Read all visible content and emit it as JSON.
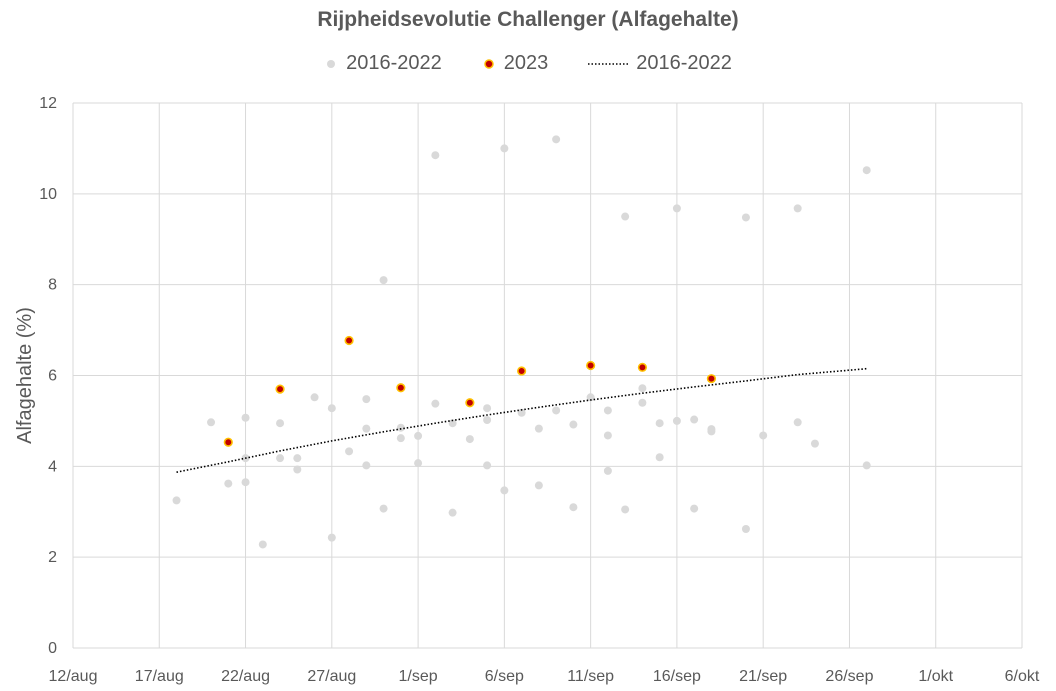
{
  "chart_data": {
    "type": "scatter",
    "title": "Rijpheidsevolutie Challenger (Alfagehalte)",
    "xlabel": "",
    "ylabel": "Alfagehalte (%)",
    "x_unit": "date",
    "xlim": [
      "2023-08-12",
      "2023-10-06"
    ],
    "ylim": [
      0,
      12
    ],
    "x_ticks": [
      "12/aug",
      "17/aug",
      "22/aug",
      "27/aug",
      "1/sep",
      "6/sep",
      "11/sep",
      "16/sep",
      "21/sep",
      "26/sep",
      "1/okt",
      "6/okt"
    ],
    "x_tick_dates": [
      "2023-08-12",
      "2023-08-17",
      "2023-08-22",
      "2023-08-27",
      "2023-09-01",
      "2023-09-06",
      "2023-09-11",
      "2023-09-16",
      "2023-09-21",
      "2023-09-26",
      "2023-10-01",
      "2023-10-06"
    ],
    "y_ticks": [
      0,
      2,
      4,
      6,
      8,
      10,
      12
    ],
    "grid": true,
    "legend_position": "top",
    "series": [
      {
        "name": "2016-2022",
        "kind": "scatter",
        "color": "#d9d9d9",
        "points": [
          [
            "2023-08-18",
            3.25
          ],
          [
            "2023-08-20",
            4.97
          ],
          [
            "2023-08-21",
            3.62
          ],
          [
            "2023-08-22",
            5.07
          ],
          [
            "2023-08-22",
            4.18
          ],
          [
            "2023-08-22",
            3.65
          ],
          [
            "2023-08-23",
            2.28
          ],
          [
            "2023-08-24",
            4.95
          ],
          [
            "2023-08-24",
            4.18
          ],
          [
            "2023-08-25",
            4.18
          ],
          [
            "2023-08-25",
            3.93
          ],
          [
            "2023-08-26",
            5.52
          ],
          [
            "2023-08-27",
            5.28
          ],
          [
            "2023-08-27",
            2.43
          ],
          [
            "2023-08-28",
            4.33
          ],
          [
            "2023-08-29",
            5.48
          ],
          [
            "2023-08-29",
            4.83
          ],
          [
            "2023-08-29",
            4.02
          ],
          [
            "2023-08-30",
            8.1
          ],
          [
            "2023-08-30",
            3.07
          ],
          [
            "2023-08-31",
            4.85
          ],
          [
            "2023-08-31",
            4.62
          ],
          [
            "2023-09-01",
            4.67
          ],
          [
            "2023-09-01",
            4.07
          ],
          [
            "2023-09-02",
            10.85
          ],
          [
            "2023-09-02",
            5.38
          ],
          [
            "2023-09-03",
            4.95
          ],
          [
            "2023-09-03",
            2.98
          ],
          [
            "2023-09-04",
            4.6
          ],
          [
            "2023-09-05",
            5.28
          ],
          [
            "2023-09-05",
            5.02
          ],
          [
            "2023-09-05",
            4.02
          ],
          [
            "2023-09-06",
            11.0
          ],
          [
            "2023-09-06",
            3.47
          ],
          [
            "2023-09-07",
            5.18
          ],
          [
            "2023-09-08",
            4.83
          ],
          [
            "2023-09-08",
            3.58
          ],
          [
            "2023-09-09",
            11.2
          ],
          [
            "2023-09-09",
            5.23
          ],
          [
            "2023-09-10",
            4.92
          ],
          [
            "2023-09-10",
            3.1
          ],
          [
            "2023-09-11",
            5.52
          ],
          [
            "2023-09-12",
            5.23
          ],
          [
            "2023-09-12",
            4.68
          ],
          [
            "2023-09-12",
            3.9
          ],
          [
            "2023-09-13",
            9.5
          ],
          [
            "2023-09-13",
            3.05
          ],
          [
            "2023-09-14",
            5.72
          ],
          [
            "2023-09-14",
            5.4
          ],
          [
            "2023-09-15",
            4.95
          ],
          [
            "2023-09-15",
            4.2
          ],
          [
            "2023-09-16",
            9.68
          ],
          [
            "2023-09-16",
            5.0
          ],
          [
            "2023-09-17",
            5.03
          ],
          [
            "2023-09-17",
            3.07
          ],
          [
            "2023-09-18",
            4.82
          ],
          [
            "2023-09-18",
            4.77
          ],
          [
            "2023-09-20",
            9.48
          ],
          [
            "2023-09-20",
            2.62
          ],
          [
            "2023-09-21",
            4.68
          ],
          [
            "2023-09-23",
            9.68
          ],
          [
            "2023-09-23",
            4.97
          ],
          [
            "2023-09-24",
            4.5
          ],
          [
            "2023-09-27",
            10.52
          ],
          [
            "2023-09-27",
            4.02
          ]
        ]
      },
      {
        "name": "2023",
        "kind": "scatter",
        "color": "#c00000",
        "edge_color": "#ffc000",
        "points": [
          [
            "2023-08-21",
            4.53
          ],
          [
            "2023-08-24",
            5.7
          ],
          [
            "2023-08-28",
            6.77
          ],
          [
            "2023-08-31",
            5.73
          ],
          [
            "2023-09-04",
            5.4
          ],
          [
            "2023-09-07",
            6.1
          ],
          [
            "2023-09-11",
            6.22
          ],
          [
            "2023-09-14",
            6.18
          ],
          [
            "2023-09-18",
            5.93
          ]
        ]
      },
      {
        "name": "2016-2022",
        "kind": "trendline",
        "style": "dotted",
        "color": "#000000",
        "points": [
          [
            "2023-08-18",
            3.87
          ],
          [
            "2023-08-21",
            4.1
          ],
          [
            "2023-08-24",
            4.34
          ],
          [
            "2023-08-27",
            4.56
          ],
          [
            "2023-08-30",
            4.76
          ],
          [
            "2023-09-02",
            4.95
          ],
          [
            "2023-09-05",
            5.13
          ],
          [
            "2023-09-08",
            5.3
          ],
          [
            "2023-09-11",
            5.46
          ],
          [
            "2023-09-14",
            5.61
          ],
          [
            "2023-09-17",
            5.75
          ],
          [
            "2023-09-20",
            5.88
          ],
          [
            "2023-09-23",
            6.02
          ],
          [
            "2023-09-27",
            6.15
          ]
        ]
      }
    ]
  }
}
